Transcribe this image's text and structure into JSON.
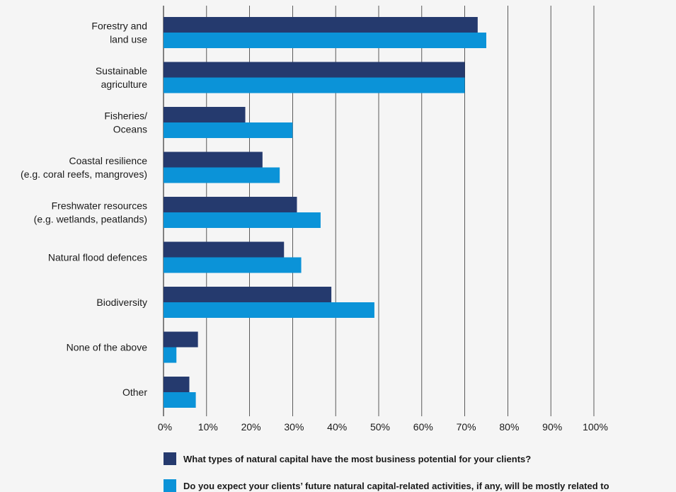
{
  "chart_data": {
    "type": "bar",
    "orientation": "horizontal",
    "categories": [
      [
        "Forestry and",
        "land use"
      ],
      [
        "Sustainable",
        "agriculture"
      ],
      [
        "Fisheries/",
        "Oceans"
      ],
      [
        "Coastal resilience",
        "(e.g. coral reefs, mangroves)"
      ],
      [
        "Freshwater resources",
        "(e.g. wetlands, peatlands)"
      ],
      [
        "Natural flood defences"
      ],
      [
        "Biodiversity"
      ],
      [
        "None of the above"
      ],
      [
        "Other"
      ]
    ],
    "series": [
      {
        "name": "What types of natural capital have the most business potential for your clients?",
        "color": "#253a6e",
        "values": [
          73,
          70,
          19,
          23,
          31,
          28,
          39,
          8,
          6
        ]
      },
      {
        "name": "Do you expect your clients’ future natural capital-related activities, if any, will be mostly related to",
        "color": "#0b93d8",
        "values": [
          75,
          70,
          30,
          27,
          36.5,
          32,
          49,
          3,
          7.5
        ]
      }
    ],
    "xlim": [
      0,
      100
    ],
    "xticks": [
      "0%",
      "10%",
      "20%",
      "30%",
      "40%",
      "50%",
      "60%",
      "70%",
      "80%",
      "90%",
      "100%"
    ],
    "grid": true,
    "legend_position": "bottom"
  }
}
